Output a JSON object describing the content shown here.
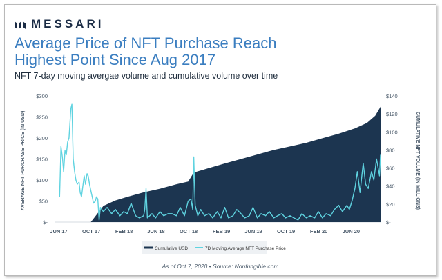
{
  "brand": {
    "name": "MESSARI",
    "icon": "messari-logo-icon"
  },
  "header": {
    "title_line1": "Average Price of NFT Purchase Reach",
    "title_line2": "Highest Point Since Aug 2017",
    "subtitle": "NFT 7-day moving avergae volume and cumulative volume over time"
  },
  "footnote": "As of Oct  7, 2020  •  Source: Nonfungible.com",
  "colors": {
    "area": "#1c3550",
    "line": "#5fd3e0",
    "title": "#3b7ec0",
    "axis_text": "#4a5a6a"
  },
  "chart_data": {
    "type": "area",
    "title": "Average Price of NFT Purchase Reach Highest Point Since Aug 2017",
    "x_ticks": [
      "JUN 17",
      "OCT 17",
      "FEB 18",
      "JUN 18",
      "OCT 18",
      "FEB 19",
      "JUN 19",
      "OCT 19",
      "FEB 20",
      "JUN 20"
    ],
    "y_left": {
      "label": "AVERAGE NFT PURCHASE PRICE (IN USD)",
      "ticks": [
        "$-",
        "$50",
        "$100",
        "$150",
        "$200",
        "$250",
        "$300"
      ],
      "range": [
        0,
        300
      ]
    },
    "y_right": {
      "label": "CUMULATIVE NFT VOLUME (IN MILLIONS)",
      "ticks": [
        "$-",
        "$20",
        "$40",
        "$60",
        "$80",
        "$100",
        "$120",
        "$140"
      ],
      "range": [
        0,
        140
      ]
    },
    "legend_position": "bottom",
    "series": [
      {
        "name": "Cumulative USD",
        "type": "area",
        "axis": "right",
        "x": [
          "2017-10-15",
          "2017-12-01",
          "2018-01-15",
          "2018-03-01",
          "2018-05-01",
          "2018-07-01",
          "2018-09-01",
          "2018-10-15",
          "2018-11-05",
          "2019-01-01",
          "2019-03-01",
          "2019-05-01",
          "2019-07-01",
          "2019-09-01",
          "2019-11-01",
          "2020-01-01",
          "2020-03-01",
          "2020-05-01",
          "2020-07-01",
          "2020-08-15",
          "2020-09-15",
          "2020-10-05"
        ],
        "values": [
          0,
          18,
          24,
          28,
          33,
          37,
          42,
          45,
          55,
          60,
          65,
          70,
          75,
          80,
          84,
          88,
          93,
          98,
          104,
          110,
          118,
          128
        ]
      },
      {
        "name": "7D Moving Average NFT Purchase Price",
        "type": "line",
        "axis": "left",
        "x": [
          "2017-06-20",
          "2017-06-25",
          "2017-07-01",
          "2017-07-05",
          "2017-07-10",
          "2017-07-15",
          "2017-07-20",
          "2017-07-25",
          "2017-08-01",
          "2017-08-05",
          "2017-08-10",
          "2017-08-15",
          "2017-08-20",
          "2017-08-25",
          "2017-09-01",
          "2017-09-05",
          "2017-09-10",
          "2017-09-15",
          "2017-09-20",
          "2017-09-25",
          "2017-10-01",
          "2017-10-05",
          "2017-10-10",
          "2017-10-15",
          "2017-10-20",
          "2017-10-25",
          "2017-11-01",
          "2017-11-05",
          "2017-11-10",
          "2017-11-15",
          "2017-11-20",
          "2017-12-01",
          "2017-12-15",
          "2018-01-01",
          "2018-01-15",
          "2018-02-01",
          "2018-02-15",
          "2018-03-01",
          "2018-03-15",
          "2018-04-01",
          "2018-04-15",
          "2018-05-01",
          "2018-05-05",
          "2018-05-10",
          "2018-05-15",
          "2018-06-01",
          "2018-06-15",
          "2018-07-01",
          "2018-07-15",
          "2018-08-01",
          "2018-08-15",
          "2018-09-01",
          "2018-09-15",
          "2018-10-01",
          "2018-10-15",
          "2018-10-25",
          "2018-11-01",
          "2018-11-05",
          "2018-11-10",
          "2018-11-20",
          "2018-12-01",
          "2018-12-15",
          "2019-01-01",
          "2019-01-15",
          "2019-02-01",
          "2019-02-15",
          "2019-03-01",
          "2019-03-15",
          "2019-04-01",
          "2019-04-15",
          "2019-05-01",
          "2019-05-15",
          "2019-06-01",
          "2019-06-15",
          "2019-07-01",
          "2019-07-15",
          "2019-08-01",
          "2019-08-15",
          "2019-09-01",
          "2019-09-15",
          "2019-10-01",
          "2019-10-15",
          "2019-11-01",
          "2019-11-15",
          "2019-12-01",
          "2019-12-15",
          "2020-01-01",
          "2020-01-15",
          "2020-02-01",
          "2020-02-15",
          "2020-03-01",
          "2020-03-15",
          "2020-04-01",
          "2020-04-15",
          "2020-05-01",
          "2020-05-15",
          "2020-06-01",
          "2020-06-10",
          "2020-06-20",
          "2020-07-01",
          "2020-07-10",
          "2020-07-20",
          "2020-08-01",
          "2020-08-10",
          "2020-08-20",
          "2020-09-01",
          "2020-09-10",
          "2020-09-20",
          "2020-10-01",
          "2020-10-05"
        ],
        "values": [
          60,
          180,
          150,
          120,
          170,
          160,
          190,
          200,
          270,
          280,
          150,
          120,
          100,
          90,
          95,
          70,
          60,
          85,
          110,
          90,
          115,
          110,
          90,
          75,
          60,
          45,
          50,
          60,
          55,
          5,
          35,
          25,
          35,
          20,
          30,
          15,
          25,
          20,
          45,
          15,
          10,
          15,
          30,
          80,
          10,
          20,
          10,
          25,
          15,
          20,
          20,
          15,
          35,
          15,
          50,
          55,
          30,
          155,
          40,
          15,
          30,
          15,
          20,
          10,
          25,
          10,
          35,
          10,
          15,
          30,
          20,
          10,
          15,
          35,
          10,
          20,
          15,
          25,
          10,
          15,
          20,
          10,
          15,
          10,
          5,
          20,
          10,
          15,
          10,
          25,
          10,
          20,
          15,
          30,
          40,
          25,
          40,
          30,
          50,
          80,
          120,
          70,
          140,
          90,
          80,
          120,
          100,
          150,
          110,
          160
        ]
      }
    ]
  }
}
